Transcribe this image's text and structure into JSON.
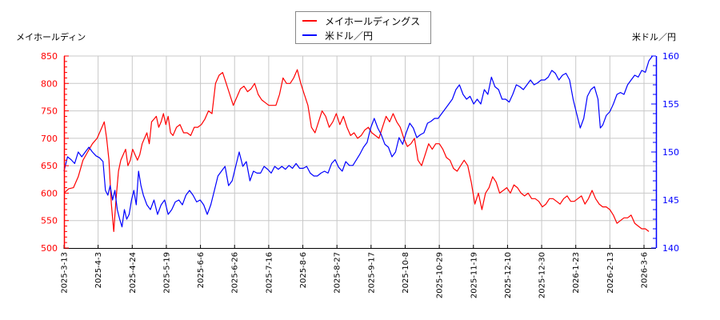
{
  "legend": {
    "items": [
      {
        "label": "メイホールディングス",
        "color": "#ff0000"
      },
      {
        "label": "米ドル／円",
        "color": "#0000ff"
      }
    ]
  },
  "axes": {
    "left_title": "メイホールディン",
    "right_title": "米ドル／円"
  },
  "chart_data": {
    "type": "line",
    "title": "",
    "xlabel": "",
    "ylabel_left": "メイホールディン",
    "ylabel_right": "米ドル／円",
    "x_tick_labels": [
      "2025-3-13",
      "2025-4-3",
      "2025-4-24",
      "2025-5-19",
      "2025-6-6",
      "2025-6-26",
      "2025-7-16",
      "2025-8-6",
      "2025-8-27",
      "2025-9-17",
      "2025-10-8",
      "2025-10-29",
      "2025-11-19",
      "2025-12-10",
      "2025-12-30",
      "2026-1-23",
      "2026-2-13",
      "2026-3-6"
    ],
    "y_left": {
      "min": 500,
      "max": 850,
      "ticks": [
        500,
        550,
        600,
        650,
        700,
        750,
        800,
        850
      ],
      "color": "#ff0000"
    },
    "y_right": {
      "min": 140,
      "max": 160,
      "ticks": [
        140,
        145,
        150,
        155,
        160
      ],
      "color": "#0000ff"
    },
    "grid": true,
    "legend_position": "top-center",
    "series": [
      {
        "name": "メイホールディングス",
        "axis": "left",
        "color": "#ff0000",
        "x_frac": [
          0,
          0.008,
          0.016,
          0.024,
          0.032,
          0.04,
          0.048,
          0.056,
          0.064,
          0.068,
          0.072,
          0.076,
          0.08,
          0.084,
          0.088,
          0.092,
          0.096,
          0.1,
          0.104,
          0.108,
          0.112,
          0.116,
          0.12,
          0.124,
          0.128,
          0.132,
          0.136,
          0.14,
          0.144,
          0.148,
          0.152,
          0.156,
          0.16,
          0.164,
          0.168,
          0.172,
          0.176,
          0.18,
          0.184,
          0.19,
          0.196,
          0.202,
          0.208,
          0.214,
          0.22,
          0.226,
          0.232,
          0.238,
          0.244,
          0.25,
          0.256,
          0.262,
          0.268,
          0.274,
          0.28,
          0.286,
          0.292,
          0.298,
          0.304,
          0.31,
          0.316,
          0.322,
          0.328,
          0.334,
          0.34,
          0.346,
          0.352,
          0.358,
          0.364,
          0.37,
          0.376,
          0.382,
          0.388,
          0.394,
          0.4,
          0.406,
          0.412,
          0.418,
          0.424,
          0.43,
          0.436,
          0.442,
          0.448,
          0.454,
          0.46,
          0.466,
          0.472,
          0.478,
          0.484,
          0.49,
          0.496,
          0.502,
          0.508,
          0.514,
          0.52,
          0.526,
          0.532,
          0.538,
          0.544,
          0.55,
          0.556,
          0.562,
          0.568,
          0.574,
          0.58,
          0.586,
          0.592,
          0.598,
          0.604,
          0.61,
          0.616,
          0.622,
          0.628,
          0.634,
          0.64,
          0.646,
          0.652,
          0.658,
          0.664,
          0.67,
          0.676,
          0.682,
          0.688,
          0.694,
          0.7,
          0.706,
          0.712,
          0.718,
          0.724,
          0.73,
          0.736,
          0.742,
          0.748,
          0.754,
          0.76,
          0.766,
          0.772,
          0.778,
          0.784,
          0.79,
          0.796,
          0.802,
          0.808,
          0.814,
          0.82,
          0.826,
          0.832,
          0.838,
          0.844,
          0.85,
          0.856,
          0.862,
          0.868,
          0.874,
          0.88,
          0.886,
          0.892,
          0.898,
          0.904,
          0.91,
          0.916,
          0.922,
          0.928,
          0.934,
          0.94,
          0.946,
          0.952,
          0.958,
          0.964,
          0.97,
          0.976,
          0.982,
          0.988,
          0.994,
          1.0
        ],
        "values": [
          600,
          608,
          610,
          630,
          660,
          675,
          690,
          700,
          720,
          730,
          700,
          660,
          580,
          530,
          590,
          640,
          660,
          670,
          680,
          650,
          660,
          680,
          670,
          660,
          670,
          690,
          700,
          710,
          690,
          730,
          735,
          740,
          720,
          730,
          745,
          725,
          740,
          710,
          705,
          720,
          725,
          710,
          710,
          705,
          720,
          720,
          725,
          735,
          750,
          745,
          800,
          815,
          820,
          800,
          780,
          760,
          775,
          790,
          795,
          785,
          790,
          800,
          780,
          770,
          765,
          760,
          760,
          760,
          780,
          810,
          800,
          800,
          810,
          825,
          800,
          780,
          760,
          720,
          710,
          730,
          750,
          740,
          720,
          730,
          745,
          725,
          740,
          720,
          705,
          710,
          700,
          705,
          715,
          720,
          710,
          705,
          700,
          720,
          740,
          730,
          745,
          730,
          720,
          700,
          685,
          690,
          700,
          660,
          650,
          670,
          690,
          680,
          690,
          690,
          680,
          665,
          660,
          645,
          640,
          650,
          660,
          650,
          620,
          580,
          600,
          570,
          600,
          610,
          630,
          620,
          600,
          605,
          610,
          600,
          615,
          610,
          600,
          595,
          600,
          590,
          590,
          585,
          575,
          580,
          590,
          590,
          585,
          580,
          590,
          595,
          585,
          585,
          590,
          595,
          580,
          590,
          605,
          590,
          580,
          575,
          575,
          570,
          560,
          545,
          550,
          555,
          555,
          560,
          545,
          540,
          535,
          535,
          530
        ]
      },
      {
        "name": "米ドル／円",
        "axis": "right",
        "color": "#0000ff",
        "x_frac": [
          0,
          0.006,
          0.012,
          0.018,
          0.024,
          0.03,
          0.036,
          0.042,
          0.048,
          0.054,
          0.06,
          0.066,
          0.07,
          0.074,
          0.078,
          0.082,
          0.086,
          0.09,
          0.094,
          0.098,
          0.102,
          0.106,
          0.11,
          0.114,
          0.118,
          0.122,
          0.126,
          0.13,
          0.134,
          0.14,
          0.146,
          0.152,
          0.158,
          0.164,
          0.17,
          0.176,
          0.182,
          0.188,
          0.194,
          0.2,
          0.206,
          0.212,
          0.218,
          0.224,
          0.23,
          0.236,
          0.242,
          0.248,
          0.254,
          0.26,
          0.266,
          0.272,
          0.278,
          0.284,
          0.29,
          0.296,
          0.302,
          0.308,
          0.314,
          0.32,
          0.326,
          0.332,
          0.338,
          0.344,
          0.35,
          0.356,
          0.362,
          0.368,
          0.374,
          0.38,
          0.386,
          0.392,
          0.398,
          0.404,
          0.41,
          0.416,
          0.422,
          0.428,
          0.434,
          0.44,
          0.446,
          0.452,
          0.458,
          0.464,
          0.47,
          0.476,
          0.482,
          0.488,
          0.494,
          0.5,
          0.506,
          0.512,
          0.518,
          0.524,
          0.53,
          0.536,
          0.542,
          0.548,
          0.554,
          0.56,
          0.566,
          0.572,
          0.578,
          0.584,
          0.59,
          0.596,
          0.602,
          0.608,
          0.614,
          0.62,
          0.626,
          0.632,
          0.638,
          0.644,
          0.65,
          0.656,
          0.662,
          0.668,
          0.674,
          0.68,
          0.686,
          0.692,
          0.698,
          0.704,
          0.71,
          0.716,
          0.722,
          0.728,
          0.734,
          0.74,
          0.746,
          0.752,
          0.758,
          0.764,
          0.77,
          0.776,
          0.782,
          0.788,
          0.794,
          0.8,
          0.806,
          0.812,
          0.818,
          0.824,
          0.83,
          0.836,
          0.842,
          0.848,
          0.854,
          0.86,
          0.866,
          0.872,
          0.878,
          0.884,
          0.89,
          0.896,
          0.902,
          0.906,
          0.91,
          0.916,
          0.922,
          0.928,
          0.934,
          0.94,
          0.946,
          0.952,
          0.958,
          0.964,
          0.97,
          0.976,
          0.982,
          0.988,
          0.994,
          1.0
        ],
        "values": [
          148,
          149.5,
          149.2,
          148.8,
          150,
          149.5,
          150,
          150.5,
          150,
          149.6,
          149.4,
          149,
          146,
          145.5,
          146.5,
          145,
          146,
          144,
          143,
          142.2,
          144,
          143,
          143.5,
          145,
          146,
          144.5,
          148,
          146.5,
          145.5,
          144.5,
          144,
          145,
          143.5,
          144.5,
          145,
          143.5,
          144,
          144.8,
          145,
          144.5,
          145.5,
          146,
          145.5,
          144.8,
          145,
          144.5,
          143.5,
          144.5,
          146,
          147.5,
          148,
          148.5,
          146.5,
          147,
          148.5,
          150,
          148.5,
          149,
          147,
          148,
          147.8,
          147.8,
          148.5,
          148.2,
          147.8,
          148.5,
          148.2,
          148.5,
          148.2,
          148.6,
          148.3,
          148.8,
          148.3,
          148.3,
          148.5,
          147.8,
          147.5,
          147.5,
          147.8,
          148,
          147.8,
          148.8,
          149.2,
          148.4,
          148,
          149,
          148.6,
          148.6,
          149.2,
          149.8,
          150.5,
          151,
          152.5,
          153.5,
          152.5,
          151.8,
          150.8,
          150.5,
          149.5,
          150,
          151.5,
          150.8,
          152,
          153,
          152.5,
          151.5,
          151.8,
          152,
          153,
          153.2,
          153.5,
          153.5,
          154,
          154.5,
          155,
          155.5,
          156.5,
          157,
          156,
          155.5,
          155.8,
          155,
          155.5,
          155,
          156.5,
          156,
          157.8,
          156.8,
          156.5,
          155.5,
          155.5,
          155.2,
          156,
          157,
          156.8,
          156.5,
          157,
          157.5,
          157,
          157.2,
          157.5,
          157.5,
          157.8,
          158.5,
          158.2,
          157.5,
          158,
          158.2,
          157.5,
          155.5,
          154,
          152.5,
          153.5,
          155.8,
          156.5,
          156.8,
          155.5,
          152.5,
          152.8,
          153.8,
          154.2,
          155,
          156,
          156.2,
          156,
          157,
          157.5,
          158,
          157.8,
          158.5,
          158.3,
          159.5,
          160
        ]
      }
    ]
  }
}
